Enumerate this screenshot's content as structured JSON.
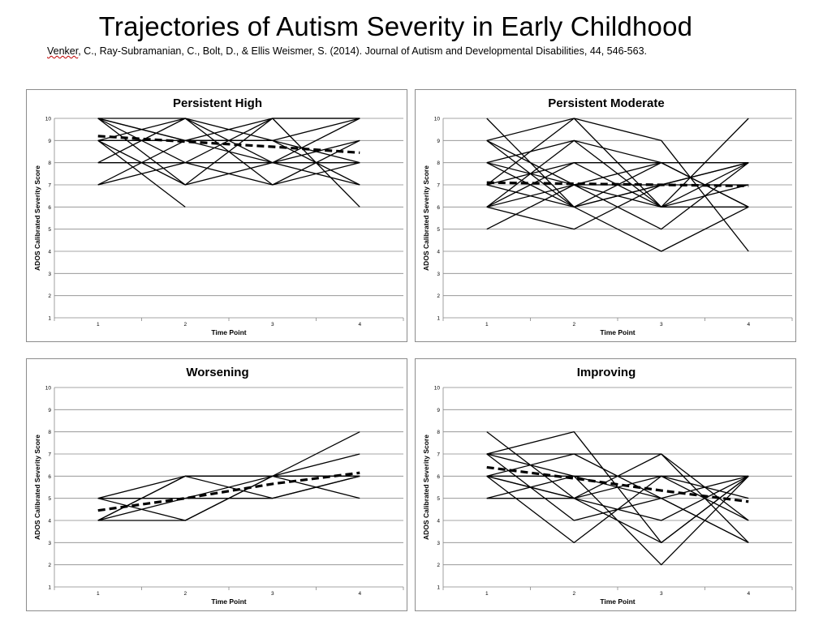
{
  "header": {
    "title": "Trajectories of Autism Severity in Early Childhood",
    "citation_author": "Venker",
    "citation_rest": ", C., Ray-Subramanian, C., Bolt, D., & Ellis Weismer, S. (2014). Journal of Autism and Developmental Disabilities, 44, 546-563."
  },
  "chart_data": [
    {
      "type": "line",
      "title": "Persistent High",
      "xlabel": "Time Point",
      "ylabel": "ADOS Calibrated Severity Score",
      "x": [
        1,
        2,
        3,
        4
      ],
      "xticks": [
        "1",
        "2",
        "3",
        "4"
      ],
      "yticks": [
        "1",
        "2",
        "3",
        "4",
        "5",
        "6",
        "7",
        "8",
        "9",
        "10"
      ],
      "ylim": [
        1,
        10
      ],
      "grid": true,
      "legend": "none",
      "series": [
        {
          "values": [
            10,
            9,
            10,
            10
          ]
        },
        {
          "values": [
            10,
            8,
            8,
            9
          ]
        },
        {
          "values": [
            10,
            10,
            9,
            7
          ]
        },
        {
          "values": [
            9,
            10,
            8,
            8
          ]
        },
        {
          "values": [
            9,
            7,
            10,
            10
          ]
        },
        {
          "values": [
            7,
            8,
            7,
            8
          ]
        },
        {
          "values": [
            7,
            9,
            9,
            10
          ]
        },
        {
          "values": [
            8,
            8,
            10,
            6
          ]
        },
        {
          "values": [
            9,
            6,
            null,
            null
          ]
        },
        {
          "values": [
            10,
            9,
            8,
            7
          ]
        },
        {
          "values": [
            8,
            10,
            7,
            9
          ]
        },
        {
          "values": [
            9,
            9,
            9,
            8
          ]
        },
        {
          "values": [
            10,
            7,
            8,
            10
          ]
        }
      ],
      "mean": {
        "style": "dashed",
        "values": [
          9.2,
          8.95,
          8.72,
          8.45
        ]
      }
    },
    {
      "type": "line",
      "title": "Persistent Moderate",
      "xlabel": "Time Point",
      "ylabel": "ADOS Calibrated Severity Score",
      "x": [
        1,
        2,
        3,
        4
      ],
      "xticks": [
        "1",
        "2",
        "3",
        "4"
      ],
      "yticks": [
        "1",
        "2",
        "3",
        "4",
        "5",
        "6",
        "7",
        "8",
        "9",
        "10"
      ],
      "ylim": [
        1,
        10
      ],
      "grid": true,
      "legend": "none",
      "series": [
        {
          "values": [
            10,
            6,
            8,
            8
          ]
        },
        {
          "values": [
            9,
            10,
            9,
            4
          ]
        },
        {
          "values": [
            9,
            6,
            7,
            8
          ]
        },
        {
          "values": [
            8,
            9,
            6,
            10
          ]
        },
        {
          "values": [
            8,
            7,
            8,
            6
          ]
        },
        {
          "values": [
            7,
            8,
            6,
            7
          ]
        },
        {
          "values": [
            7,
            6,
            7,
            8
          ]
        },
        {
          "values": [
            6,
            9,
            8,
            6
          ]
        },
        {
          "values": [
            6,
            7,
            5,
            8
          ]
        },
        {
          "values": [
            5,
            7,
            6,
            6
          ]
        },
        {
          "values": [
            7,
            10,
            6,
            8
          ]
        },
        {
          "values": [
            6,
            5,
            7,
            7
          ]
        },
        {
          "values": [
            8,
            6,
            4,
            6
          ]
        },
        {
          "values": [
            9,
            7,
            7,
            8
          ]
        },
        {
          "values": [
            6,
            8,
            8,
            6
          ]
        }
      ],
      "mean": {
        "style": "dashed",
        "values": [
          7.1,
          7.05,
          7.0,
          6.95
        ]
      }
    },
    {
      "type": "line",
      "title": "Worsening",
      "xlabel": "Time Point",
      "ylabel": "ADOS Calibrated Severity Score",
      "x": [
        1,
        2,
        3,
        4
      ],
      "xticks": [
        "1",
        "2",
        "3",
        "4"
      ],
      "yticks": [
        "1",
        "2",
        "3",
        "4",
        "5",
        "6",
        "7",
        "8",
        "9",
        "10"
      ],
      "ylim": [
        1,
        10
      ],
      "grid": true,
      "legend": "none",
      "series": [
        {
          "values": [
            5,
            6,
            6,
            8
          ]
        },
        {
          "values": [
            5,
            4,
            6,
            7
          ]
        },
        {
          "values": [
            4,
            5,
            6,
            6
          ]
        },
        {
          "values": [
            4,
            6,
            5,
            6
          ]
        },
        {
          "values": [
            5,
            5,
            5,
            6
          ]
        },
        {
          "values": [
            4,
            4,
            6,
            5
          ]
        },
        {
          "values": [
            4,
            6,
            6,
            6
          ]
        }
      ],
      "mean": {
        "style": "dashed",
        "values": [
          4.45,
          5.0,
          5.65,
          6.15
        ]
      }
    },
    {
      "type": "line",
      "title": "Improving",
      "xlabel": "Time Point",
      "ylabel": "ADOS Calibrated Severity Score",
      "x": [
        1,
        2,
        3,
        4
      ],
      "xticks": [
        "1",
        "2",
        "3",
        "4"
      ],
      "yticks": [
        "1",
        "2",
        "3",
        "4",
        "5",
        "6",
        "7",
        "8",
        "9",
        "10"
      ],
      "ylim": [
        1,
        10
      ],
      "grid": true,
      "legend": "none",
      "series": [
        {
          "values": [
            8,
            5,
            7,
            4
          ]
        },
        {
          "values": [
            7,
            8,
            3,
            6
          ]
        },
        {
          "values": [
            7,
            7,
            7,
            3
          ]
        },
        {
          "values": [
            7,
            6,
            2,
            6
          ]
        },
        {
          "values": [
            6,
            7,
            5,
            3
          ]
        },
        {
          "values": [
            6,
            3,
            6,
            6
          ]
        },
        {
          "values": [
            6,
            5,
            6,
            4
          ]
        },
        {
          "values": [
            5,
            6,
            5,
            6
          ]
        },
        {
          "values": [
            5,
            5,
            4,
            6
          ]
        },
        {
          "values": [
            6,
            6,
            6,
            5
          ]
        },
        {
          "values": [
            7,
            4,
            5,
            3
          ]
        },
        {
          "values": [
            6,
            5,
            3,
            6
          ]
        }
      ],
      "mean": {
        "style": "dashed",
        "values": [
          6.4,
          5.9,
          5.35,
          4.85
        ]
      }
    }
  ]
}
